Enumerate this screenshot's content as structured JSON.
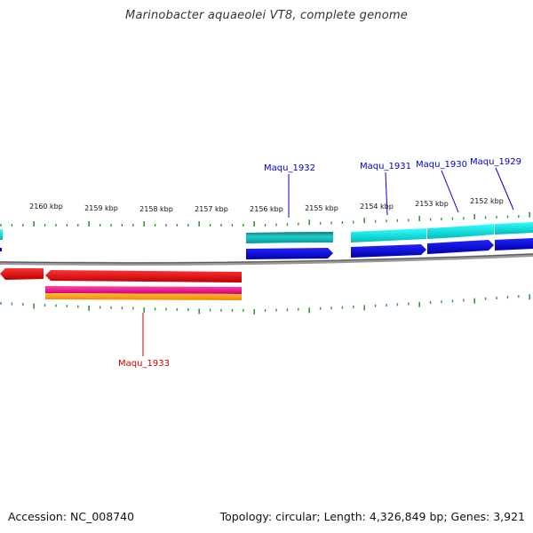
{
  "title": "Marinobacter aquaeolei VT8, complete genome",
  "footer": {
    "accession": "Accession: NC_008740",
    "summary": "Topology: circular; Length: 4,326,849 bp; Genes: 3,921"
  },
  "scale_labels": [
    "2160 kbp",
    "2159 kbp",
    "2158 kbp",
    "2157 kbp",
    "2156 kbp",
    "2155 kbp",
    "2154 kbp",
    "2153 kbp",
    "2152 kbp"
  ],
  "genes": [
    {
      "name": "Maqu_1932",
      "color": "#0000cc"
    },
    {
      "name": "Maqu_1931",
      "color": "#0000cc"
    },
    {
      "name": "Maqu_1930",
      "color": "#0000cc"
    },
    {
      "name": "Maqu_1929",
      "color": "#0000cc"
    },
    {
      "name": "Maqu_1933",
      "color": "#cc0000"
    }
  ],
  "colors": {
    "forward_cds": "#0000dd",
    "forward_feature": "#00cccc",
    "reverse_cds": "#ee0000",
    "reverse_feature_pink": "#dd1188",
    "reverse_feature_orange": "#ff9900",
    "backbone": "#888888",
    "tick": "#339933"
  }
}
